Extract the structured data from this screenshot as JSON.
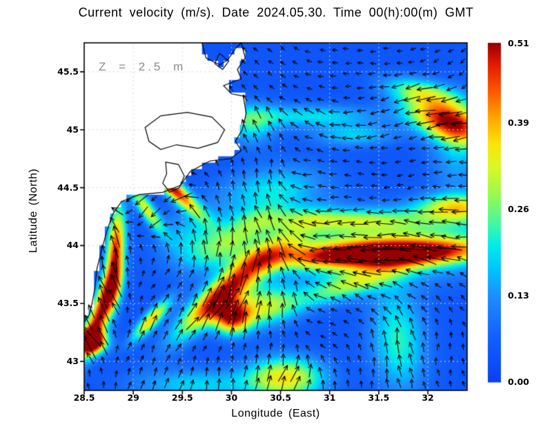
{
  "title": "Current velocity (m/s). Date 2024.05.30. Time 00(h):00(m) GMT",
  "annotation": "Z = 2.5 m",
  "chart_data": {
    "type": "heatmap",
    "subtype": "ocean-current-velocity-field-with-quiver-arrows",
    "title": "Current velocity (m/s). Date 2024.05.30. Time 00(h):00(m) GMT",
    "depth_annotation": "Z = 2.5 m",
    "units": "m/s",
    "grid": "on",
    "x_axis": {
      "label": "Longitude (East)",
      "range": [
        28.5,
        32.4
      ],
      "ticks": [
        {
          "label": "28.5",
          "value": 28.5
        },
        {
          "label": "29",
          "value": 29.0
        },
        {
          "label": "29.5",
          "value": 29.5
        },
        {
          "label": "30",
          "value": 30.0
        },
        {
          "label": "30.5",
          "value": 30.5
        },
        {
          "label": "31",
          "value": 31.0
        },
        {
          "label": "31.5",
          "value": 31.5
        },
        {
          "label": "32",
          "value": 32.0
        }
      ]
    },
    "y_axis": {
      "label": "Latitude (North)",
      "range": [
        42.75,
        45.75
      ],
      "ticks": [
        {
          "label": "43",
          "value": 43.0
        },
        {
          "label": "43.5",
          "value": 43.5
        },
        {
          "label": "44",
          "value": 44.0
        },
        {
          "label": "44.5",
          "value": 44.5
        },
        {
          "label": "45",
          "value": 45.0
        },
        {
          "label": "45.5",
          "value": 45.5
        }
      ]
    },
    "colorbar": {
      "min": 0.0,
      "max": 0.51,
      "position": "right",
      "ticks": [
        {
          "label": "0.51",
          "value": 0.51
        },
        {
          "label": "0.39",
          "value": 0.39
        },
        {
          "label": "0.26",
          "value": 0.26
        },
        {
          "label": "0.13",
          "value": 0.13
        },
        {
          "label": "0.00",
          "value": 0.0
        }
      ]
    },
    "colors": {
      "land": "#ffffff",
      "coastline": "#000000",
      "gridline": "#d6d6d6",
      "arrow": "#000000",
      "frame": "#000000",
      "colormap_stops": [
        [
          0.0,
          [
            10,
            64,
            245
          ]
        ],
        [
          0.13,
          [
            16,
            96,
            252
          ]
        ],
        [
          0.25,
          [
            30,
            140,
            255
          ]
        ],
        [
          0.33,
          [
            0,
            195,
            255
          ]
        ],
        [
          0.4,
          [
            0,
            235,
            235
          ]
        ],
        [
          0.47,
          [
            70,
            248,
            160
          ]
        ],
        [
          0.55,
          [
            150,
            250,
            80
          ]
        ],
        [
          0.63,
          [
            215,
            248,
            40
          ]
        ],
        [
          0.7,
          [
            250,
            230,
            10
          ]
        ],
        [
          0.78,
          [
            255,
            165,
            0
          ]
        ],
        [
          0.86,
          [
            255,
            85,
            0
          ]
        ],
        [
          0.94,
          [
            225,
            25,
            0
          ]
        ],
        [
          1.0,
          [
            150,
            0,
            0
          ]
        ]
      ]
    },
    "sea_base_speed": 0.045,
    "speed_features": [
      {
        "lon": 31.55,
        "lat": 43.93,
        "sx": 0.7,
        "sy": 0.075,
        "rot": 2,
        "amp": 0.46
      },
      {
        "lon": 31.55,
        "lat": 43.99,
        "sx": 0.9,
        "sy": 0.2,
        "rot": 2,
        "amp": 0.22
      },
      {
        "lon": 31.15,
        "lat": 44.22,
        "sx": 0.6,
        "sy": 0.07,
        "rot": 0,
        "amp": 0.17
      },
      {
        "lon": 32.3,
        "lat": 44.33,
        "sx": 0.28,
        "sy": 0.08,
        "rot": 0,
        "amp": 0.26
      },
      {
        "lon": 32.2,
        "lat": 45.07,
        "sx": 0.3,
        "sy": 0.11,
        "rot": -15,
        "amp": 0.4
      },
      {
        "lon": 31.95,
        "lat": 45.32,
        "sx": 0.28,
        "sy": 0.08,
        "rot": -10,
        "amp": 0.22
      },
      {
        "lon": 29.37,
        "lat": 44.52,
        "sx": 0.26,
        "sy": 0.055,
        "rot": -38,
        "amp": 0.46
      },
      {
        "lon": 29.13,
        "lat": 44.32,
        "sx": 0.18,
        "sy": 0.05,
        "rot": -50,
        "amp": 0.28
      },
      {
        "lon": 28.82,
        "lat": 43.95,
        "sx": 0.065,
        "sy": 0.28,
        "rot": -5,
        "amp": 0.42
      },
      {
        "lon": 28.62,
        "lat": 43.32,
        "sx": 0.07,
        "sy": 0.22,
        "rot": -25,
        "amp": 0.42
      },
      {
        "lon": 28.57,
        "lat": 43.17,
        "sx": 0.11,
        "sy": 0.07,
        "rot": 0,
        "amp": 0.52
      },
      {
        "lon": 29.18,
        "lat": 43.36,
        "sx": 0.18,
        "sy": 0.05,
        "rot": 42,
        "amp": 0.32
      },
      {
        "lon": 30.0,
        "lat": 43.38,
        "sx": 0.13,
        "sy": 0.1,
        "rot": 0,
        "amp": 0.36
      },
      {
        "lon": 30.3,
        "lat": 43.47,
        "sx": 0.28,
        "sy": 0.12,
        "rot": 8,
        "amp": 0.26
      },
      {
        "lon": 30.18,
        "lat": 43.78,
        "sx": 0.45,
        "sy": 0.1,
        "rot": 33,
        "amp": 0.26
      },
      {
        "lon": 29.78,
        "lat": 43.48,
        "sx": 0.35,
        "sy": 0.09,
        "rot": 38,
        "amp": 0.26
      },
      {
        "lon": 30.55,
        "lat": 42.86,
        "sx": 0.28,
        "sy": 0.13,
        "rot": 0,
        "amp": 0.3
      },
      {
        "lon": 31.7,
        "lat": 43.18,
        "sx": 0.2,
        "sy": 0.33,
        "rot": 8,
        "amp": 0.18
      },
      {
        "lon": 31.2,
        "lat": 43.66,
        "sx": 0.38,
        "sy": 0.08,
        "rot": 15,
        "amp": 0.2
      },
      {
        "lon": 29.62,
        "lat": 44.05,
        "sx": 0.25,
        "sy": 0.18,
        "rot": 0,
        "amp": 0.13
      },
      {
        "lon": 30.4,
        "lat": 44.48,
        "sx": 0.4,
        "sy": 0.15,
        "rot": 8,
        "amp": 0.15
      },
      {
        "lon": 30.8,
        "lat": 45.12,
        "sx": 0.5,
        "sy": 0.07,
        "rot": 0,
        "amp": 0.15
      },
      {
        "lon": 31.25,
        "lat": 44.95,
        "sx": 0.3,
        "sy": 0.07,
        "rot": 0,
        "amp": 0.13
      },
      {
        "lon": 30.2,
        "lat": 45.05,
        "sx": 0.18,
        "sy": 0.13,
        "rot": 0,
        "amp": 0.16
      },
      {
        "lon": 29.62,
        "lat": 42.8,
        "sx": 0.45,
        "sy": 0.1,
        "rot": 0,
        "amp": 0.14
      },
      {
        "lon": 30.1,
        "lat": 44.1,
        "sx": 0.3,
        "sy": 0.1,
        "rot": 25,
        "amp": 0.16
      },
      {
        "lon": 32.3,
        "lat": 44.85,
        "sx": 0.2,
        "sy": 0.3,
        "rot": 0,
        "amp": 0.12
      },
      {
        "lon": 28.75,
        "lat": 43.62,
        "sx": 0.08,
        "sy": 0.15,
        "rot": -20,
        "amp": 0.25
      }
    ],
    "flow_directions": [
      {
        "lon": 32.3,
        "lat": 43.95,
        "deg": 180,
        "w": 3.0
      },
      {
        "lon": 31.45,
        "lat": 43.93,
        "deg": 188,
        "w": 3.0
      },
      {
        "lon": 30.95,
        "lat": 44.02,
        "deg": 205,
        "w": 2.0
      },
      {
        "lon": 31.3,
        "lat": 43.62,
        "deg": 148,
        "w": 1.5
      },
      {
        "lon": 30.9,
        "lat": 43.35,
        "deg": 190,
        "w": 1.2
      },
      {
        "lon": 31.6,
        "lat": 43.2,
        "deg": 88,
        "w": 2.0
      },
      {
        "lon": 32.15,
        "lat": 43.15,
        "deg": 72,
        "w": 1.5
      },
      {
        "lon": 32.35,
        "lat": 43.75,
        "deg": 115,
        "w": 1.0
      },
      {
        "lon": 30.55,
        "lat": 43.55,
        "deg": 85,
        "w": 1.5
      },
      {
        "lon": 30.18,
        "lat": 43.8,
        "deg": 58,
        "w": 2.0
      },
      {
        "lon": 29.85,
        "lat": 43.5,
        "deg": 48,
        "w": 2.0
      },
      {
        "lon": 29.55,
        "lat": 43.22,
        "deg": 42,
        "w": 1.5
      },
      {
        "lon": 29.95,
        "lat": 43.0,
        "deg": 85,
        "w": 1.0
      },
      {
        "lon": 30.6,
        "lat": 42.85,
        "deg": 55,
        "w": 1.2
      },
      {
        "lon": 31.4,
        "lat": 42.82,
        "deg": 75,
        "w": 1.0
      },
      {
        "lon": 30.32,
        "lat": 44.12,
        "deg": 118,
        "w": 1.5
      },
      {
        "lon": 29.98,
        "lat": 44.28,
        "deg": 95,
        "w": 1.0
      },
      {
        "lon": 30.35,
        "lat": 44.62,
        "deg": 72,
        "w": 1.5
      },
      {
        "lon": 30.28,
        "lat": 45.02,
        "deg": 112,
        "w": 1.5
      },
      {
        "lon": 30.62,
        "lat": 45.38,
        "deg": 152,
        "w": 1.0
      },
      {
        "lon": 31.1,
        "lat": 45.55,
        "deg": 185,
        "w": 1.0
      },
      {
        "lon": 31.55,
        "lat": 45.12,
        "deg": 208,
        "w": 1.5
      },
      {
        "lon": 32.08,
        "lat": 45.06,
        "deg": 192,
        "w": 2.0
      },
      {
        "lon": 32.3,
        "lat": 45.48,
        "deg": 235,
        "w": 1.0
      },
      {
        "lon": 31.8,
        "lat": 44.62,
        "deg": 196,
        "w": 1.5
      },
      {
        "lon": 32.25,
        "lat": 44.33,
        "deg": 183,
        "w": 1.5
      },
      {
        "lon": 31.15,
        "lat": 44.33,
        "deg": 185,
        "w": 1.5
      },
      {
        "lon": 30.75,
        "lat": 44.6,
        "deg": 190,
        "w": 1.0
      },
      {
        "lon": 29.1,
        "lat": 44.25,
        "deg": 242,
        "w": 1.5
      },
      {
        "lon": 29.4,
        "lat": 44.48,
        "deg": 230,
        "w": 1.2
      },
      {
        "lon": 28.85,
        "lat": 44.0,
        "deg": 95,
        "w": 1.5
      },
      {
        "lon": 28.75,
        "lat": 43.55,
        "deg": 120,
        "w": 1.2
      },
      {
        "lon": 28.62,
        "lat": 43.2,
        "deg": 140,
        "w": 1.0
      },
      {
        "lon": 29.25,
        "lat": 43.65,
        "deg": 30,
        "w": 1.0
      },
      {
        "lon": 28.95,
        "lat": 43.05,
        "deg": 50,
        "w": 1.0
      }
    ],
    "arrow_grid": {
      "dlon": 0.131,
      "dlat": 0.107
    },
    "land_polygon": [
      [
        28.5,
        45.75
      ],
      [
        29.7,
        45.75
      ],
      [
        29.74,
        45.62
      ],
      [
        29.88,
        45.56
      ],
      [
        29.96,
        45.6
      ],
      [
        30.04,
        45.7
      ],
      [
        30.1,
        45.75
      ],
      [
        30.14,
        45.62
      ],
      [
        30.06,
        45.52
      ],
      [
        30.1,
        45.44
      ],
      [
        29.92,
        45.38
      ],
      [
        30.0,
        45.31
      ],
      [
        30.12,
        45.29
      ],
      [
        30.15,
        45.14
      ],
      [
        30.11,
        45.0
      ],
      [
        30.04,
        44.9
      ],
      [
        30.1,
        44.82
      ],
      [
        29.99,
        44.75
      ],
      [
        29.78,
        44.73
      ],
      [
        29.58,
        44.64
      ],
      [
        29.48,
        44.52
      ],
      [
        29.3,
        44.46
      ],
      [
        29.06,
        44.44
      ],
      [
        28.88,
        44.38
      ],
      [
        28.79,
        44.27
      ],
      [
        28.73,
        44.12
      ],
      [
        28.68,
        43.97
      ],
      [
        28.63,
        43.8
      ],
      [
        28.61,
        43.64
      ],
      [
        28.58,
        43.5
      ],
      [
        28.55,
        43.4
      ],
      [
        28.5,
        43.34
      ]
    ],
    "lagoon_contours": [
      [
        [
          29.12,
          45.02
        ],
        [
          29.28,
          45.12
        ],
        [
          29.55,
          45.15
        ],
        [
          29.8,
          45.11
        ],
        [
          29.93,
          45.0
        ],
        [
          29.86,
          44.89
        ],
        [
          29.66,
          44.84
        ],
        [
          29.44,
          44.87
        ],
        [
          29.28,
          44.83
        ],
        [
          29.16,
          44.9
        ]
      ],
      [
        [
          29.33,
          44.72
        ],
        [
          29.46,
          44.7
        ],
        [
          29.52,
          44.6
        ],
        [
          29.47,
          44.5
        ],
        [
          29.37,
          44.46
        ],
        [
          29.3,
          44.54
        ],
        [
          29.34,
          44.62
        ]
      ],
      [
        [
          29.88,
          45.66
        ],
        [
          29.97,
          45.59
        ],
        [
          29.91,
          45.52
        ],
        [
          29.83,
          45.57
        ]
      ]
    ]
  }
}
